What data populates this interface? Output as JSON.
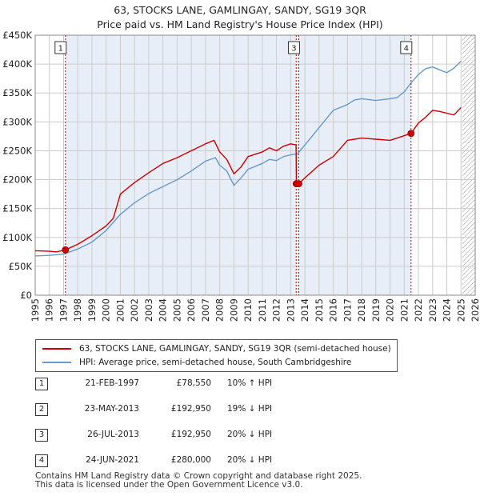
{
  "title": {
    "line1": "63, STOCKS LANE, GAMLINGAY, SANDY, SG19 3QR",
    "line2": "Price paid vs. HM Land Registry's House Price Index (HPI)"
  },
  "colors": {
    "property": "#cc0000",
    "hpi": "#6699cc",
    "shade": "#e8eef8",
    "grid": "#cccccc",
    "marker_line": "#cc0000"
  },
  "chart_data": {
    "type": "line",
    "title": "Price paid vs. HM Land Registry's House Price Index (HPI)",
    "xlabel": "",
    "ylabel": "",
    "xlim": [
      1995,
      2026
    ],
    "ylim": [
      0,
      450000
    ],
    "y_ticks": [
      0,
      50000,
      100000,
      150000,
      200000,
      250000,
      300000,
      350000,
      400000,
      450000
    ],
    "y_tick_labels": [
      "£0",
      "£50K",
      "£100K",
      "£150K",
      "£200K",
      "£250K",
      "£300K",
      "£350K",
      "£400K",
      "£450K"
    ],
    "x_ticks": [
      1995,
      1996,
      1997,
      1998,
      1999,
      2000,
      2001,
      2002,
      2003,
      2004,
      2005,
      2006,
      2007,
      2008,
      2009,
      2010,
      2011,
      2012,
      2013,
      2014,
      2015,
      2016,
      2017,
      2018,
      2019,
      2020,
      2021,
      2022,
      2023,
      2024,
      2025,
      2026
    ],
    "x_tick_labels": [
      "1995",
      "1996",
      "1997",
      "1998",
      "1999",
      "2000",
      "2001",
      "2002",
      "2003",
      "2004",
      "2005",
      "2006",
      "2007",
      "2008",
      "2009",
      "2010",
      "2011",
      "2012",
      "2013",
      "2014",
      "2015",
      "2016",
      "2017",
      "2018",
      "2019",
      "2020",
      "2021",
      "2022",
      "2023",
      "2024",
      "2025",
      "2026"
    ],
    "grid": true,
    "shaded_ranges": [
      [
        1997.13,
        2013.4
      ],
      [
        2013.57,
        2021.48
      ]
    ],
    "future_hatch_from": 2025.1,
    "series": [
      {
        "name": "63, STOCKS LANE, GAMLINGAY, SANDY, SG19 3QR (semi-detached house)",
        "color": "#cc0000",
        "x": [
          1995.0,
          1996.0,
          1996.5,
          1997.13,
          1998.0,
          1999.0,
          2000.0,
          2000.5,
          2001.0,
          2002.0,
          2003.0,
          2004.0,
          2005.0,
          2006.0,
          2007.0,
          2007.6,
          2008.0,
          2008.5,
          2009.0,
          2009.5,
          2010.0,
          2011.0,
          2011.5,
          2012.0,
          2012.5,
          2013.0,
          2013.38,
          2013.4,
          2013.57,
          2014.0,
          2015.0,
          2016.0,
          2017.0,
          2017.5,
          2018.0,
          2019.0,
          2020.0,
          2020.5,
          2021.48,
          2022.0,
          2022.5,
          2023.0,
          2023.5,
          2024.0,
          2024.5,
          2025.0
        ],
        "y": [
          77000,
          76000,
          75000,
          78550,
          88000,
          103000,
          120000,
          133000,
          175000,
          195000,
          212000,
          228000,
          238000,
          250000,
          262000,
          268000,
          248000,
          235000,
          210000,
          222000,
          240000,
          248000,
          255000,
          250000,
          258000,
          262000,
          260000,
          192950,
          192950,
          203000,
          225000,
          240000,
          268000,
          270000,
          272000,
          270000,
          268000,
          272000,
          280000,
          298000,
          308000,
          320000,
          318000,
          315000,
          312000,
          325000
        ]
      },
      {
        "name": "HPI: Average price, semi-detached house, South Cambridgeshire",
        "color": "#6699cc",
        "x": [
          1995.0,
          1996.0,
          1997.0,
          1998.0,
          1999.0,
          2000.0,
          2001.0,
          2002.0,
          2003.0,
          2004.0,
          2005.0,
          2006.0,
          2007.0,
          2007.7,
          2008.0,
          2008.5,
          2009.0,
          2009.5,
          2010.0,
          2011.0,
          2011.5,
          2012.0,
          2012.5,
          2013.0,
          2013.5,
          2014.0,
          2014.5,
          2015.0,
          2016.0,
          2017.0,
          2017.5,
          2018.0,
          2019.0,
          2020.0,
          2020.5,
          2021.0,
          2021.5,
          2022.0,
          2022.5,
          2023.0,
          2023.5,
          2024.0,
          2024.5,
          2025.0
        ],
        "y": [
          68000,
          69000,
          71000,
          80000,
          92000,
          112000,
          140000,
          160000,
          176000,
          188000,
          200000,
          215000,
          232000,
          238000,
          225000,
          215000,
          190000,
          203000,
          218000,
          228000,
          235000,
          233000,
          240000,
          243000,
          245000,
          260000,
          275000,
          290000,
          320000,
          330000,
          338000,
          340000,
          337000,
          340000,
          342000,
          352000,
          368000,
          382000,
          392000,
          395000,
          390000,
          385000,
          393000,
          405000
        ]
      }
    ],
    "sale_markers": [
      {
        "label": "1",
        "x": 1997.13,
        "y": 78550
      },
      {
        "label": "2",
        "x": 2013.39,
        "y": 192950
      },
      {
        "label": "3",
        "x": 2013.57,
        "y": 192950
      },
      {
        "label": "4",
        "x": 2021.48,
        "y": 280000
      }
    ],
    "marker_boxes": [
      {
        "label": "1",
        "x": 1997.13
      },
      {
        "label": "3",
        "x": 2013.57
      },
      {
        "label": "4",
        "x": 2021.48
      }
    ]
  },
  "legend": {
    "property": "63, STOCKS LANE, GAMLINGAY, SANDY, SG19 3QR (semi-detached house)",
    "hpi": "HPI: Average price, semi-detached house, South Cambridgeshire"
  },
  "sales": [
    {
      "num": "1",
      "date": "21-FEB-1997",
      "price": "£78,550",
      "hpi": "10% ↑ HPI"
    },
    {
      "num": "2",
      "date": "23-MAY-2013",
      "price": "£192,950",
      "hpi": "19% ↓ HPI"
    },
    {
      "num": "3",
      "date": "26-JUL-2013",
      "price": "£192,950",
      "hpi": "20% ↓ HPI"
    },
    {
      "num": "4",
      "date": "24-JUN-2021",
      "price": "£280,000",
      "hpi": "20% ↓ HPI"
    }
  ],
  "footer": {
    "line1": "Contains HM Land Registry data © Crown copyright and database right 2025.",
    "line2": "This data is licensed under the Open Government Licence v3.0."
  }
}
